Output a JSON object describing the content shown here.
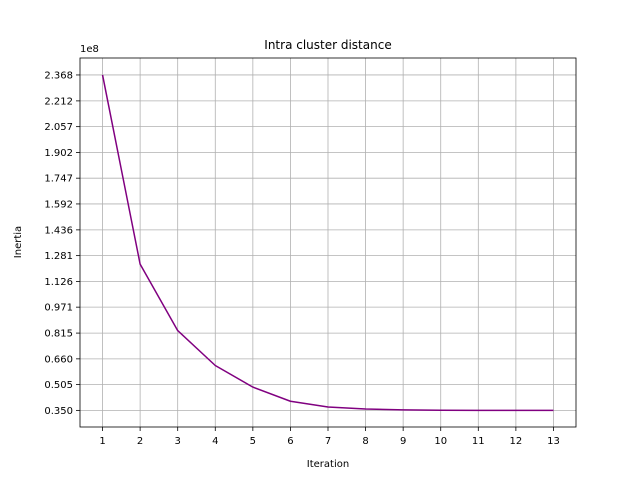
{
  "chart_data": {
    "type": "line",
    "title": "Intra cluster distance",
    "xlabel": "Iteration",
    "ylabel": "Inertia",
    "y_multiplier_label": "1e8",
    "x_ticks": [
      "1",
      "2",
      "3",
      "4",
      "5",
      "6",
      "7",
      "8",
      "9",
      "10",
      "11",
      "12",
      "13"
    ],
    "y_ticks": [
      "0.350",
      "0.505",
      "0.660",
      "0.815",
      "0.971",
      "1.126",
      "1.281",
      "1.436",
      "1.592",
      "1.747",
      "1.902",
      "2.057",
      "2.212",
      "2.368"
    ],
    "y_tick_values": [
      0.35,
      0.505,
      0.66,
      0.815,
      0.971,
      1.126,
      1.281,
      1.436,
      1.592,
      1.747,
      1.902,
      2.057,
      2.212,
      2.368
    ],
    "xlim": [
      0.4,
      13.6
    ],
    "ylim": [
      0.25,
      2.47
    ],
    "grid": true,
    "series": [
      {
        "color": "#800080",
        "x": [
          1,
          2,
          3,
          4,
          5,
          6,
          7,
          8,
          9,
          10,
          11,
          12,
          13
        ],
        "y": [
          2.368,
          1.23,
          0.83,
          0.62,
          0.49,
          0.405,
          0.37,
          0.358,
          0.353,
          0.351,
          0.35,
          0.35,
          0.35
        ]
      }
    ]
  }
}
